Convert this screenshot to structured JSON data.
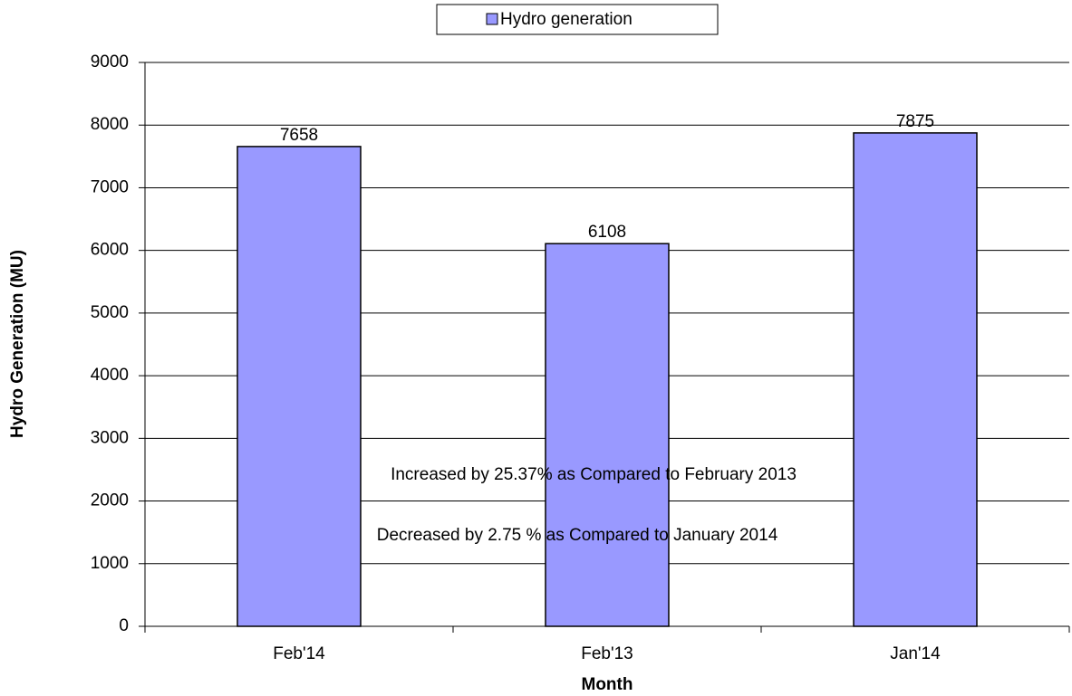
{
  "chart_data": {
    "type": "bar",
    "x_label": "Month",
    "y_label": "Hydro Generation (MU)",
    "categories": [
      "Feb'14",
      "Feb'13",
      "Jan'14"
    ],
    "series": [
      {
        "name": "Hydro generation",
        "color": "#9999ff",
        "values": [
          7658,
          6108,
          7875
        ]
      }
    ],
    "ylim": [
      0,
      9000
    ],
    "yticks": [
      0,
      1000,
      2000,
      3000,
      4000,
      5000,
      6000,
      7000,
      8000,
      9000
    ],
    "grid": true,
    "legend": "top",
    "annotations": [
      "Increased by  25.37% as Compared to February 2013",
      "Decreased by 2.75 % as Compared to January 2014"
    ]
  }
}
